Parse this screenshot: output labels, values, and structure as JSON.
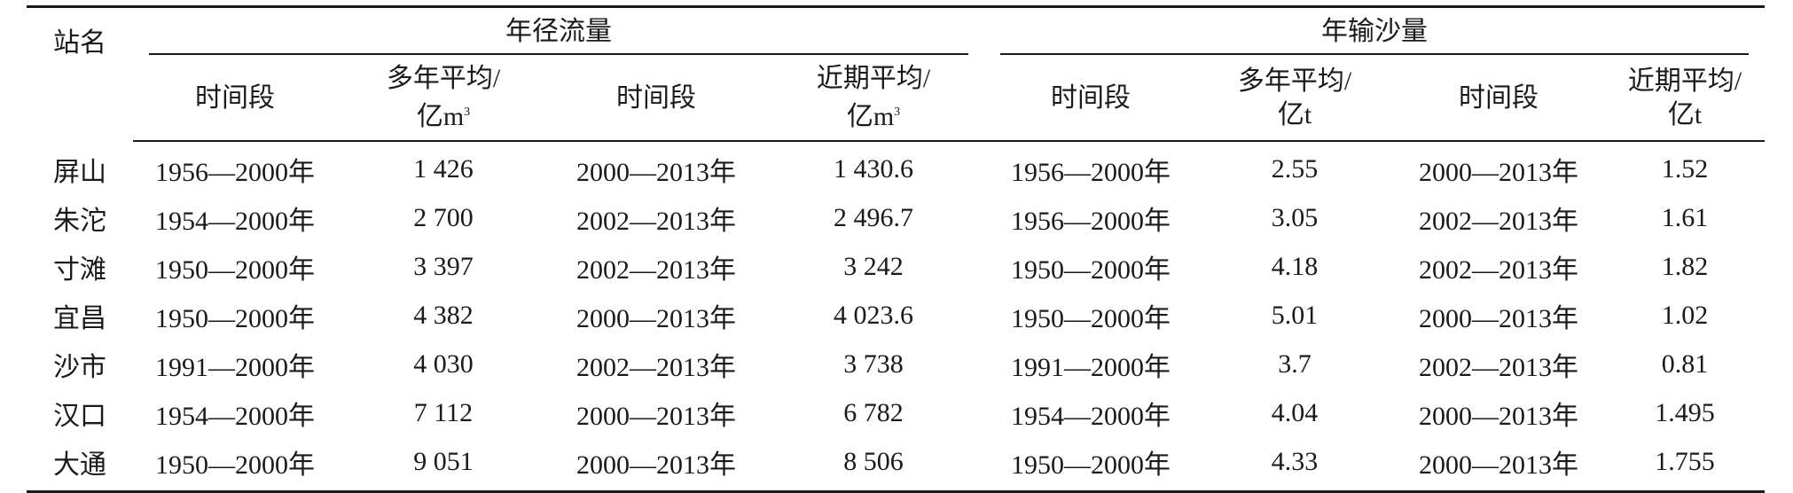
{
  "table": {
    "station_header": "站名",
    "group_runoff": "年径流量",
    "group_sediment": "年输沙量",
    "sub": {
      "period": "时间段",
      "avg_multi_runoff_l1": "多年平均/",
      "avg_multi_runoff_l2": "亿m",
      "avg_recent_runoff_l1": "近期平均/",
      "avg_recent_runoff_l2": "亿m",
      "runoff_unit_sup": "3",
      "avg_multi_sed_l1": "多年平均/",
      "avg_multi_sed_l2": "亿t",
      "avg_recent_sed_l1": "近期平均/",
      "avg_recent_sed_l2": "亿t"
    },
    "rows": [
      {
        "station": "屏山",
        "r_period1": "1956—2000年",
        "r_avg1": "1 426",
        "r_period2": "2000—2013年",
        "r_avg2": "1 430.6",
        "s_period1": "1956—2000年",
        "s_avg1": "2.55",
        "s_period2": "2000—2013年",
        "s_avg2": "1.52"
      },
      {
        "station": "朱沱",
        "r_period1": "1954—2000年",
        "r_avg1": "2 700",
        "r_period2": "2002—2013年",
        "r_avg2": "2 496.7",
        "s_period1": "1956—2000年",
        "s_avg1": "3.05",
        "s_period2": "2002—2013年",
        "s_avg2": "1.61"
      },
      {
        "station": "寸滩",
        "r_period1": "1950—2000年",
        "r_avg1": "3 397",
        "r_period2": "2002—2013年",
        "r_avg2": "3 242",
        "s_period1": "1950—2000年",
        "s_avg1": "4.18",
        "s_period2": "2002—2013年",
        "s_avg2": "1.82"
      },
      {
        "station": "宜昌",
        "r_period1": "1950—2000年",
        "r_avg1": "4 382",
        "r_period2": "2000—2013年",
        "r_avg2": "4 023.6",
        "s_period1": "1950—2000年",
        "s_avg1": "5.01",
        "s_period2": "2000—2013年",
        "s_avg2": "1.02"
      },
      {
        "station": "沙市",
        "r_period1": "1991—2000年",
        "r_avg1": "4 030",
        "r_period2": "2002—2013年",
        "r_avg2": "3 738",
        "s_period1": "1991—2000年",
        "s_avg1": "3.7",
        "s_period2": "2002—2013年",
        "s_avg2": "0.81"
      },
      {
        "station": "汉口",
        "r_period1": "1954—2000年",
        "r_avg1": "7 112",
        "r_period2": "2000—2013年",
        "r_avg2": "6 782",
        "s_period1": "1954—2000年",
        "s_avg1": "4.04",
        "s_period2": "2000—2013年",
        "s_avg2": "1.495"
      },
      {
        "station": "大通",
        "r_period1": "1950—2000年",
        "r_avg1": "9 051",
        "r_period2": "2000—2013年",
        "r_avg2": "8 506",
        "s_period1": "1950—2000年",
        "s_avg1": "4.33",
        "s_period2": "2000—2013年",
        "s_avg2": "1.755"
      }
    ]
  }
}
